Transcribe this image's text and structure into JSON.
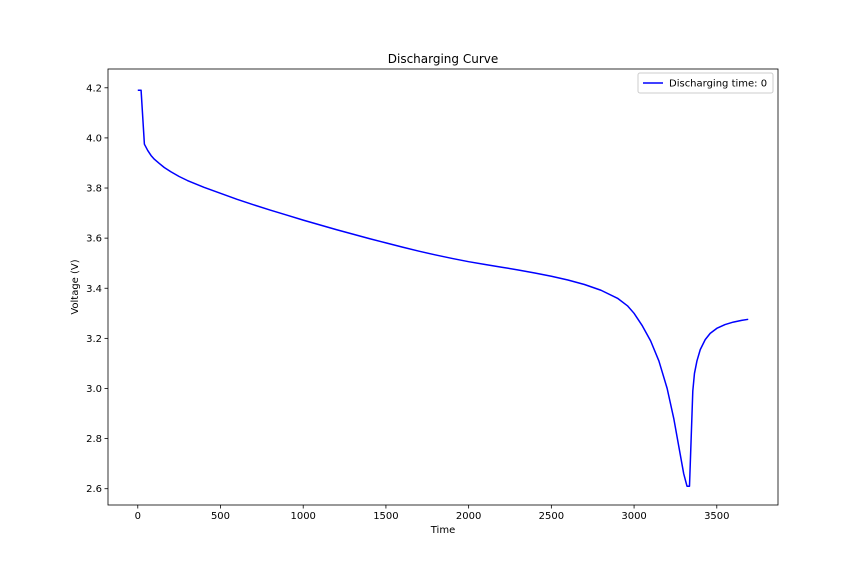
{
  "chart_data": {
    "type": "line",
    "title": "Discharging Curve",
    "xlabel": "Time",
    "ylabel": "Voltage (V)",
    "xlim": [
      -180,
      3870
    ],
    "ylim": [
      2.535,
      4.275
    ],
    "xticks": [
      0,
      500,
      1000,
      1500,
      2000,
      2500,
      3000,
      3500
    ],
    "yticks": [
      2.6,
      2.8,
      3.0,
      3.2,
      3.4,
      3.6,
      3.8,
      4.0,
      4.2
    ],
    "xtick_labels": [
      "0",
      "500",
      "1000",
      "1500",
      "2000",
      "2500",
      "3000",
      "3500"
    ],
    "ytick_labels": [
      "2.6",
      "2.8",
      "3.0",
      "3.2",
      "3.4",
      "3.6",
      "3.8",
      "4.0",
      "4.2"
    ],
    "grid": false,
    "legend_position": "top-right",
    "series": [
      {
        "name": "Discharging time: 0",
        "color": "#0000ff",
        "x": [
          0,
          15,
          20,
          40,
          60,
          80,
          100,
          130,
          160,
          200,
          250,
          300,
          400,
          500,
          600,
          700,
          800,
          900,
          1000,
          1100,
          1200,
          1300,
          1400,
          1500,
          1600,
          1700,
          1800,
          1900,
          2000,
          2100,
          2200,
          2300,
          2400,
          2500,
          2600,
          2700,
          2800,
          2900,
          2960,
          3000,
          3050,
          3100,
          3150,
          3200,
          3240,
          3270,
          3300,
          3320,
          3335,
          3345,
          3355,
          3365,
          3380,
          3400,
          3430,
          3460,
          3500,
          3550,
          3600,
          3650,
          3690
        ],
        "y": [
          4.19,
          4.19,
          4.19,
          3.975,
          3.95,
          3.93,
          3.915,
          3.898,
          3.882,
          3.865,
          3.846,
          3.83,
          3.803,
          3.779,
          3.755,
          3.733,
          3.712,
          3.692,
          3.672,
          3.653,
          3.634,
          3.616,
          3.598,
          3.581,
          3.564,
          3.548,
          3.533,
          3.519,
          3.506,
          3.495,
          3.484,
          3.473,
          3.461,
          3.448,
          3.433,
          3.415,
          3.392,
          3.36,
          3.33,
          3.3,
          3.25,
          3.19,
          3.11,
          3.0,
          2.88,
          2.77,
          2.66,
          2.61,
          2.61,
          2.8,
          2.99,
          3.06,
          3.11,
          3.155,
          3.195,
          3.22,
          3.24,
          3.255,
          3.265,
          3.272,
          3.276
        ]
      }
    ]
  }
}
